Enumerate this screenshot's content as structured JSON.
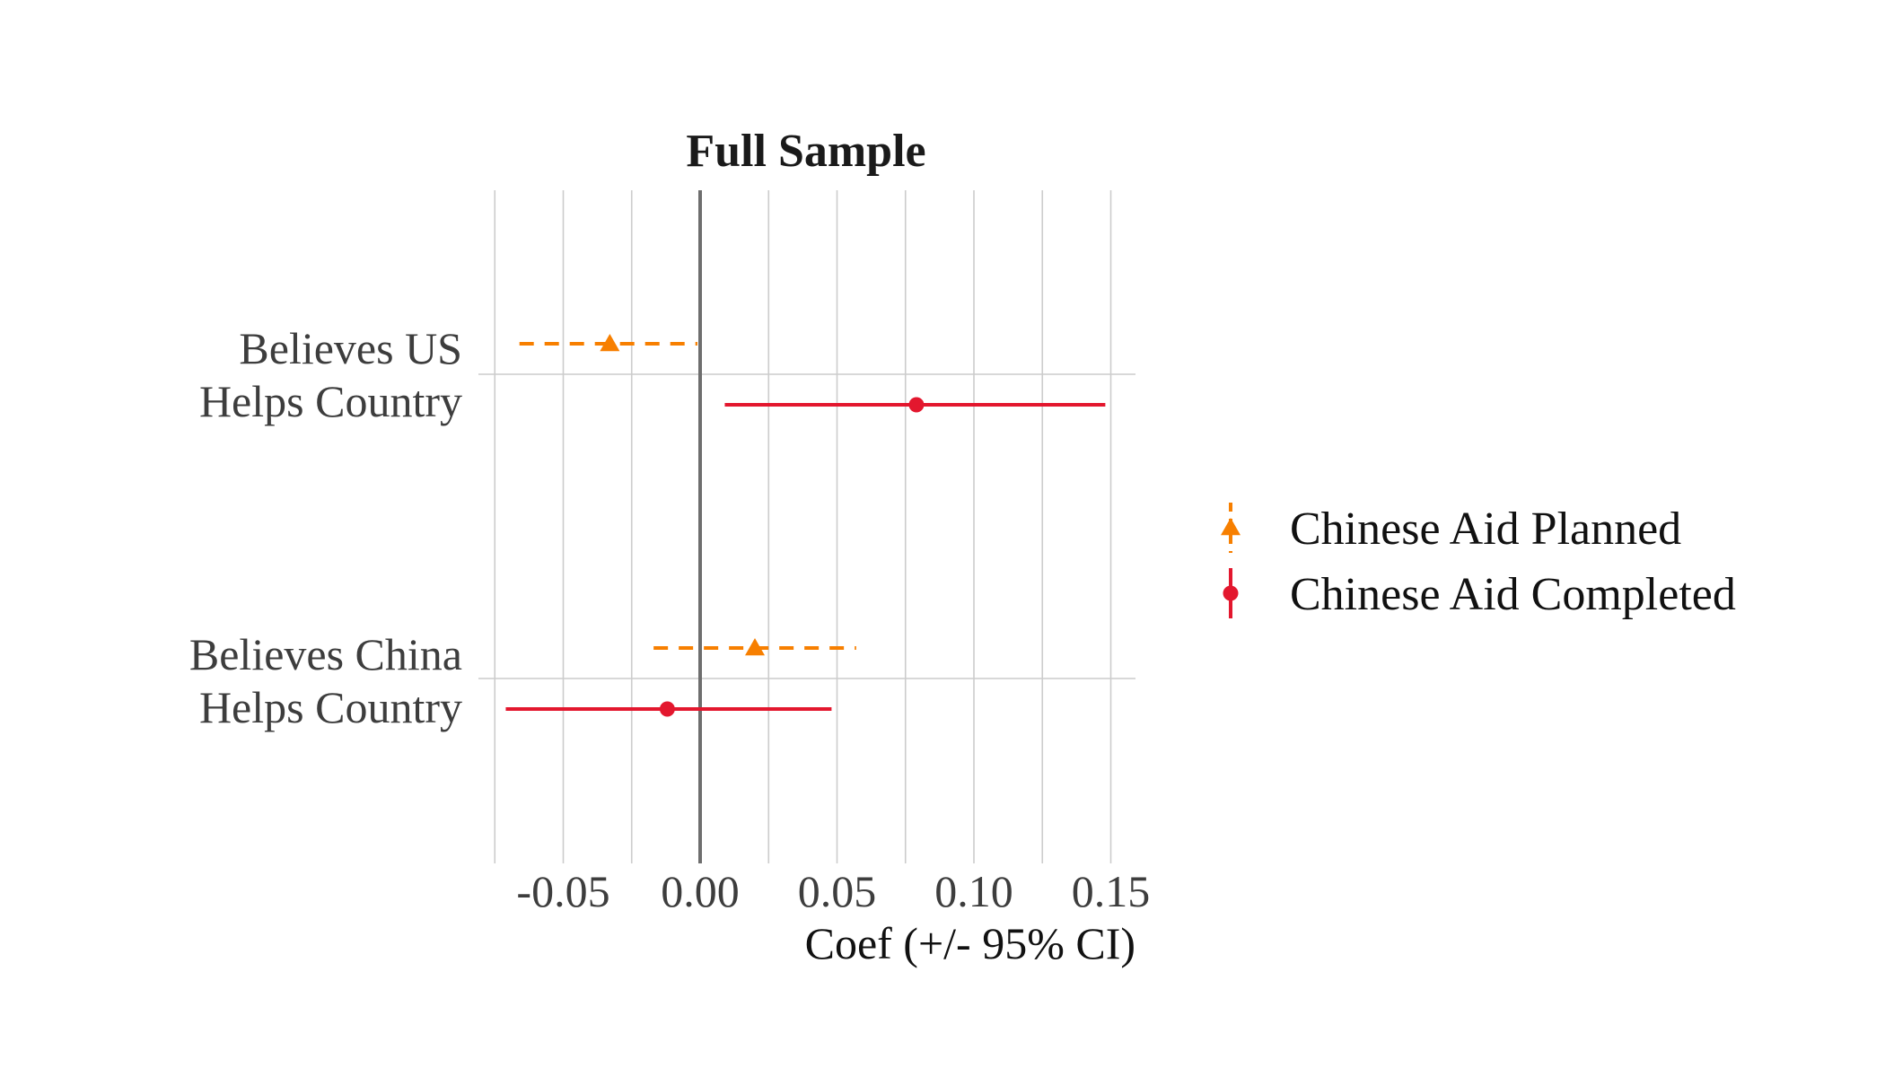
{
  "chart_data": {
    "type": "coefficient-plot",
    "title": "Full Sample",
    "xlabel": "Coef (+/- 95% CI)",
    "ylabel": "",
    "xlim": [
      -0.075,
      0.16
    ],
    "x_ticks": [
      -0.05,
      0.0,
      0.05,
      0.1,
      0.15
    ],
    "x_tick_labels": [
      "-0.05",
      "0.00",
      "0.05",
      "0.10",
      "0.15"
    ],
    "x_minor_gridlines": [
      -0.075,
      -0.025,
      0.025,
      0.075,
      0.125
    ],
    "zero_line": 0.0,
    "grid": true,
    "legend_position": "right",
    "categories": [
      {
        "label_line1": "Believes US",
        "label_line2": "Helps Country"
      },
      {
        "label_line1": "Believes China",
        "label_line2": "Helps Country"
      }
    ],
    "series": [
      {
        "name": "Chinese Aid Planned",
        "color": "#f77f00",
        "line_style": "dashed",
        "marker": "triangle",
        "points": [
          {
            "category": "Believes US Helps Country",
            "estimate": -0.033,
            "ci_low": -0.066,
            "ci_high": -0.001
          },
          {
            "category": "Believes China Helps Country",
            "estimate": 0.02,
            "ci_low": -0.017,
            "ci_high": 0.057
          }
        ]
      },
      {
        "name": "Chinese Aid Completed",
        "color": "#e3172e",
        "line_style": "solid",
        "marker": "circle",
        "points": [
          {
            "category": "Believes US Helps Country",
            "estimate": 0.079,
            "ci_low": 0.009,
            "ci_high": 0.148
          },
          {
            "category": "Believes China Helps Country",
            "estimate": -0.012,
            "ci_low": -0.071,
            "ci_high": 0.048
          }
        ]
      }
    ]
  }
}
